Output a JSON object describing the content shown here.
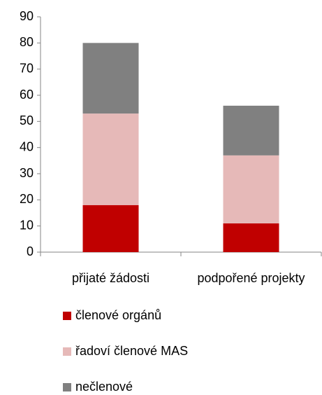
{
  "chart_data": {
    "type": "stacked-bar",
    "categories": [
      "přijaté žádosti",
      "podpořené projekty"
    ],
    "series": [
      {
        "name": "členové orgánů",
        "color": "#c00000",
        "values": [
          18,
          11
        ]
      },
      {
        "name": "řadoví členové MAS",
        "color": "#e6b9b8",
        "values": [
          35,
          26
        ]
      },
      {
        "name": "nečlenové",
        "color": "#808080",
        "values": [
          27,
          19
        ]
      }
    ],
    "ylim": [
      0,
      90
    ],
    "yticks": [
      0,
      10,
      20,
      30,
      40,
      50,
      60,
      70,
      80,
      90
    ],
    "grid": false,
    "legend": "bottom"
  }
}
